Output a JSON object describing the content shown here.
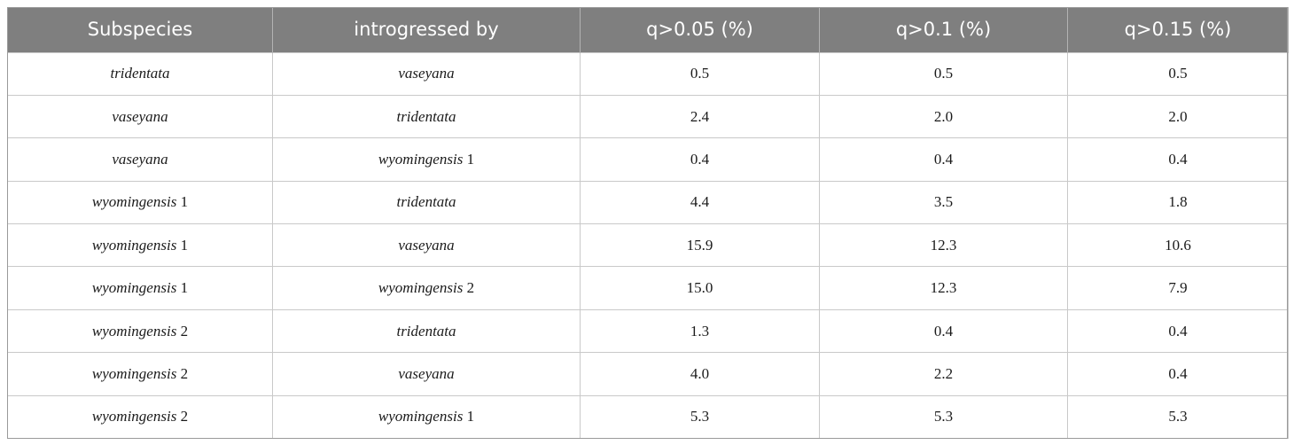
{
  "table": {
    "headers": [
      "Subspecies",
      "introgressed by",
      "q>0.05 (%)",
      "q>0.1 (%)",
      "q>0.15 (%)"
    ],
    "rows": [
      {
        "subspecies": {
          "name": "tridentata",
          "suffix": ""
        },
        "introgressed_by": {
          "name": "vaseyana",
          "suffix": ""
        },
        "q005": "0.5",
        "q01": "0.5",
        "q015": "0.5"
      },
      {
        "subspecies": {
          "name": "vaseyana",
          "suffix": ""
        },
        "introgressed_by": {
          "name": "tridentata",
          "suffix": ""
        },
        "q005": "2.4",
        "q01": "2.0",
        "q015": "2.0"
      },
      {
        "subspecies": {
          "name": "vaseyana",
          "suffix": ""
        },
        "introgressed_by": {
          "name": "wyomingensis",
          "suffix": " 1"
        },
        "q005": "0.4",
        "q01": "0.4",
        "q015": "0.4"
      },
      {
        "subspecies": {
          "name": "wyomingensis",
          "suffix": " 1"
        },
        "introgressed_by": {
          "name": "tridentata",
          "suffix": ""
        },
        "q005": "4.4",
        "q01": "3.5",
        "q015": "1.8"
      },
      {
        "subspecies": {
          "name": "wyomingensis",
          "suffix": " 1"
        },
        "introgressed_by": {
          "name": "vaseyana",
          "suffix": ""
        },
        "q005": "15.9",
        "q01": "12.3",
        "q015": "10.6"
      },
      {
        "subspecies": {
          "name": "wyomingensis",
          "suffix": " 1"
        },
        "introgressed_by": {
          "name": "wyomingensis",
          "suffix": " 2"
        },
        "q005": "15.0",
        "q01": "12.3",
        "q015": "7.9"
      },
      {
        "subspecies": {
          "name": "wyomingensis",
          "suffix": " 2"
        },
        "introgressed_by": {
          "name": "tridentata",
          "suffix": ""
        },
        "q005": "1.3",
        "q01": "0.4",
        "q015": "0.4"
      },
      {
        "subspecies": {
          "name": "wyomingensis",
          "suffix": " 2"
        },
        "introgressed_by": {
          "name": "vaseyana",
          "suffix": ""
        },
        "q005": "4.0",
        "q01": "2.2",
        "q015": "0.4"
      },
      {
        "subspecies": {
          "name": "wyomingensis",
          "suffix": " 2"
        },
        "introgressed_by": {
          "name": "wyomingensis",
          "suffix": " 1"
        },
        "q005": "5.3",
        "q01": "5.3",
        "q015": "5.3"
      }
    ]
  },
  "colors": {
    "header_bg": "#7f7f7f",
    "header_text": "#ffffff",
    "grid_line": "#c9c9c9"
  }
}
